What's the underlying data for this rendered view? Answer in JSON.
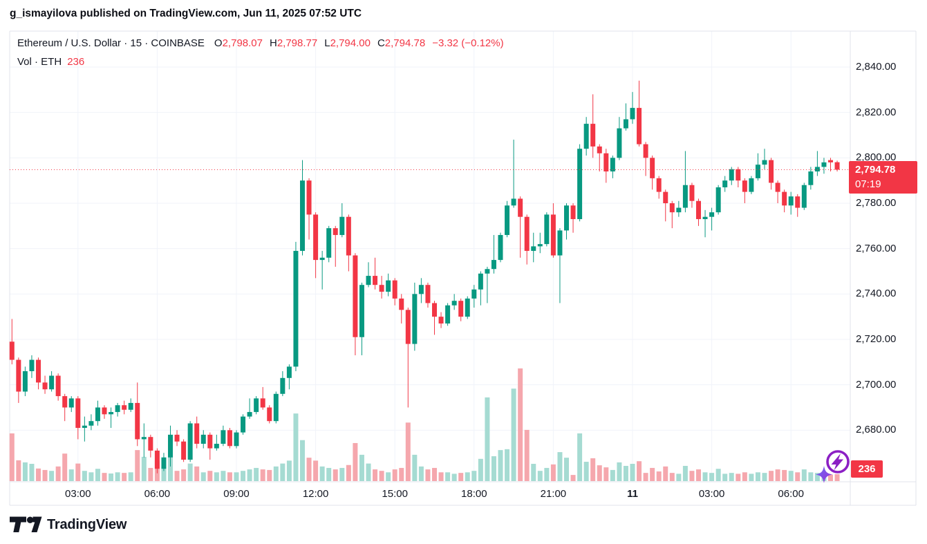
{
  "header": {
    "attribution": "g_ismayilova published on TradingView.com, Jun 11, 2025 07:52 UTC"
  },
  "legend": {
    "title": "Ethereum / U.S. Dollar · 15 · COINBASE",
    "ohlc": [
      {
        "label": "O",
        "value": "2,798.07"
      },
      {
        "label": "H",
        "value": "2,798.77"
      },
      {
        "label": "L",
        "value": "2,794.00"
      },
      {
        "label": "C",
        "value": "2,794.78"
      }
    ],
    "change": "−3.32 (−0.12%)",
    "volume_label": "Vol · ETH",
    "volume_value": "236"
  },
  "last_price_badge": {
    "price": "2,794.78",
    "countdown": "07:19"
  },
  "volume_badge": "236",
  "price_axis": {
    "ticks": [
      {
        "label": "2,840.00",
        "value": 2840
      },
      {
        "label": "2,820.00",
        "value": 2820
      },
      {
        "label": "2,800.00",
        "value": 2800
      },
      {
        "label": "2,780.00",
        "value": 2780
      },
      {
        "label": "2,760.00",
        "value": 2760
      },
      {
        "label": "2,740.00",
        "value": 2740
      },
      {
        "label": "2,720.00",
        "value": 2720
      },
      {
        "label": "2,700.00",
        "value": 2700
      },
      {
        "label": "2,680.00",
        "value": 2680
      }
    ]
  },
  "time_axis": {
    "ticks": [
      {
        "label": "03:00",
        "index": 10
      },
      {
        "label": "06:00",
        "index": 22
      },
      {
        "label": "09:00",
        "index": 34
      },
      {
        "label": "12:00",
        "index": 46
      },
      {
        "label": "15:00",
        "index": 58
      },
      {
        "label": "18:00",
        "index": 70
      },
      {
        "label": "21:00",
        "index": 82
      },
      {
        "label": "11",
        "index": 94,
        "bold": true
      },
      {
        "label": "03:00",
        "index": 106
      },
      {
        "label": "06:00",
        "index": 118
      }
    ]
  },
  "logo": {
    "text": "TradingView"
  },
  "colors": {
    "up": "#089981",
    "down": "#f23645",
    "vol_up": "#a5dbd2",
    "vol_down": "#f5a7ad",
    "grid": "#f0f3fa",
    "border": "#e0e3eb",
    "text": "#131722",
    "accent": "#f23645",
    "badge_text": "#ffffff",
    "spark_purple": "#8b1fc4",
    "spark_blue": "#6b6bf5"
  },
  "chart_data": {
    "type": "candlestick_with_volume",
    "title": "Ethereum / U.S. Dollar",
    "exchange": "COINBASE",
    "interval_minutes": 15,
    "start_time": "2025-06-10 00:30 UTC",
    "volume_unit": "ETH",
    "ylabel": "Price (USD)",
    "ylim": [
      2657,
      2856
    ],
    "grid": true,
    "last_candle": {
      "open": 2798.07,
      "high": 2798.77,
      "low": 2794.0,
      "close": 2794.78,
      "change": -3.32,
      "change_pct": -0.12,
      "volume": 236,
      "countdown": "07:19"
    },
    "candles_format": [
      "open",
      "high",
      "low",
      "close",
      "volume"
    ],
    "candles": [
      [
        2719,
        2729,
        2709,
        2711,
        1630
      ],
      [
        2711,
        2712,
        2692,
        2697,
        710
      ],
      [
        2697,
        2708,
        2695,
        2706,
        640
      ],
      [
        2706,
        2713,
        2703,
        2711,
        590
      ],
      [
        2711,
        2712,
        2698,
        2701,
        430
      ],
      [
        2701,
        2704,
        2696,
        2698,
        380
      ],
      [
        2698,
        2706,
        2697,
        2704,
        350
      ],
      [
        2704,
        2705,
        2693,
        2695,
        500
      ],
      [
        2695,
        2696,
        2684,
        2690,
        940
      ],
      [
        2690,
        2695,
        2688,
        2694,
        400
      ],
      [
        2694,
        2695,
        2676,
        2681,
        600
      ],
      [
        2681,
        2686,
        2675,
        2682,
        350
      ],
      [
        2682,
        2687,
        2680,
        2684,
        300
      ],
      [
        2684,
        2693,
        2682,
        2690,
        420
      ],
      [
        2690,
        2691,
        2685,
        2687,
        280
      ],
      [
        2687,
        2690,
        2681,
        2688,
        260
      ],
      [
        2688,
        2692,
        2686,
        2691,
        300
      ],
      [
        2691,
        2693,
        2687,
        2689,
        280
      ],
      [
        2689,
        2694,
        2688,
        2692,
        300
      ],
      [
        2692,
        2701,
        2673,
        2676,
        1060
      ],
      [
        2676,
        2683,
        2668,
        2677,
        830
      ],
      [
        2677,
        2678,
        2668,
        2671,
        450
      ],
      [
        2671,
        2672,
        2661,
        2663,
        700
      ],
      [
        2663,
        2670,
        2662,
        2668,
        500
      ],
      [
        2668,
        2682,
        2664,
        2678,
        830
      ],
      [
        2678,
        2680,
        2673,
        2675,
        350
      ],
      [
        2675,
        2676,
        2666,
        2667,
        400
      ],
      [
        2667,
        2684,
        2666,
        2683,
        600
      ],
      [
        2683,
        2686,
        2672,
        2674,
        500
      ],
      [
        2674,
        2680,
        2672,
        2678,
        300
      ],
      [
        2678,
        2679,
        2667,
        2672,
        350
      ],
      [
        2672,
        2678,
        2671,
        2674,
        300
      ],
      [
        2674,
        2682,
        2673,
        2680,
        350
      ],
      [
        2680,
        2681,
        2672,
        2673,
        300
      ],
      [
        2673,
        2680,
        2672,
        2679,
        300
      ],
      [
        2679,
        2687,
        2678,
        2686,
        350
      ],
      [
        2686,
        2694,
        2685,
        2688,
        400
      ],
      [
        2688,
        2695,
        2687,
        2694,
        450
      ],
      [
        2694,
        2699,
        2689,
        2690,
        400
      ],
      [
        2690,
        2691,
        2683,
        2684,
        380
      ],
      [
        2684,
        2697,
        2683,
        2696,
        500
      ],
      [
        2696,
        2706,
        2695,
        2703,
        600
      ],
      [
        2703,
        2709,
        2698,
        2708,
        700
      ],
      [
        2708,
        2763,
        2706,
        2759,
        2310
      ],
      [
        2759,
        2799,
        2757,
        2790,
        1400
      ],
      [
        2790,
        2791,
        2764,
        2775,
        800
      ],
      [
        2775,
        2776,
        2747,
        2755,
        700
      ],
      [
        2755,
        2759,
        2742,
        2756,
        500
      ],
      [
        2756,
        2770,
        2754,
        2769,
        450
      ],
      [
        2769,
        2770,
        2752,
        2766,
        400
      ],
      [
        2766,
        2780,
        2765,
        2774,
        450
      ],
      [
        2774,
        2775,
        2750,
        2757,
        550
      ],
      [
        2757,
        2758,
        2713,
        2721,
        1300
      ],
      [
        2721,
        2745,
        2713,
        2744,
        900
      ],
      [
        2744,
        2754,
        2743,
        2748,
        600
      ],
      [
        2748,
        2756,
        2742,
        2744,
        400
      ],
      [
        2744,
        2748,
        2738,
        2741,
        350
      ],
      [
        2741,
        2749,
        2739,
        2746,
        300
      ],
      [
        2746,
        2747,
        2735,
        2738,
        400
      ],
      [
        2738,
        2740,
        2727,
        2733,
        450
      ],
      [
        2733,
        2734,
        2690,
        2718,
        2000
      ],
      [
        2718,
        2745,
        2715,
        2740,
        900
      ],
      [
        2740,
        2747,
        2736,
        2744,
        500
      ],
      [
        2744,
        2745,
        2734,
        2736,
        400
      ],
      [
        2736,
        2737,
        2722,
        2730,
        450
      ],
      [
        2730,
        2732,
        2725,
        2727,
        300
      ],
      [
        2727,
        2736,
        2726,
        2735,
        300
      ],
      [
        2735,
        2740,
        2733,
        2737,
        250
      ],
      [
        2737,
        2738,
        2728,
        2730,
        280
      ],
      [
        2730,
        2739,
        2729,
        2738,
        300
      ],
      [
        2738,
        2744,
        2734,
        2742,
        350
      ],
      [
        2742,
        2750,
        2735,
        2749,
        760
      ],
      [
        2749,
        2752,
        2736,
        2751,
        2860
      ],
      [
        2751,
        2766,
        2749,
        2755,
        850
      ],
      [
        2755,
        2767,
        2754,
        2766,
        1060
      ],
      [
        2766,
        2781,
        2765,
        2779,
        1090
      ],
      [
        2779,
        2808,
        2778,
        2782,
        3160
      ],
      [
        2782,
        2783,
        2756,
        2774,
        3850
      ],
      [
        2774,
        2775,
        2753,
        2759,
        1750
      ],
      [
        2759,
        2767,
        2754,
        2761,
        590
      ],
      [
        2761,
        2767,
        2758,
        2762,
        350
      ],
      [
        2762,
        2776,
        2761,
        2775,
        450
      ],
      [
        2775,
        2780,
        2756,
        2757,
        570
      ],
      [
        2757,
        2769,
        2736,
        2768,
        990
      ],
      [
        2768,
        2780,
        2764,
        2779,
        800
      ],
      [
        2779,
        2780,
        2767,
        2773,
        210
      ],
      [
        2773,
        2806,
        2772,
        2804,
        1630
      ],
      [
        2804,
        2818,
        2801,
        2815,
        660
      ],
      [
        2815,
        2828,
        2800,
        2805,
        780
      ],
      [
        2805,
        2806,
        2794,
        2802,
        540
      ],
      [
        2802,
        2804,
        2789,
        2794,
        470
      ],
      [
        2794,
        2801,
        2791,
        2800,
        380
      ],
      [
        2800,
        2818,
        2799,
        2813,
        640
      ],
      [
        2813,
        2824,
        2812,
        2817,
        520
      ],
      [
        2817,
        2829,
        2815,
        2822,
        590
      ],
      [
        2822,
        2834,
        2805,
        2806,
        680
      ],
      [
        2806,
        2807,
        2792,
        2800,
        280
      ],
      [
        2800,
        2801,
        2786,
        2791,
        450
      ],
      [
        2791,
        2792,
        2782,
        2785,
        330
      ],
      [
        2785,
        2786,
        2772,
        2780,
        500
      ],
      [
        2780,
        2781,
        2769,
        2776,
        280
      ],
      [
        2776,
        2781,
        2774,
        2778,
        250
      ],
      [
        2778,
        2803,
        2776,
        2788,
        520
      ],
      [
        2788,
        2789,
        2778,
        2781,
        350
      ],
      [
        2781,
        2782,
        2770,
        2773,
        400
      ],
      [
        2773,
        2777,
        2765,
        2774,
        300
      ],
      [
        2774,
        2778,
        2768,
        2776,
        280
      ],
      [
        2776,
        2788,
        2775,
        2787,
        420
      ],
      [
        2787,
        2792,
        2785,
        2790,
        250
      ],
      [
        2790,
        2796,
        2788,
        2795,
        280
      ],
      [
        2795,
        2796,
        2787,
        2790,
        250
      ],
      [
        2790,
        2791,
        2780,
        2785,
        300
      ],
      [
        2785,
        2792,
        2784,
        2791,
        250
      ],
      [
        2791,
        2802,
        2790,
        2797,
        300
      ],
      [
        2797,
        2804,
        2795,
        2799,
        280
      ],
      [
        2799,
        2800,
        2786,
        2789,
        350
      ],
      [
        2789,
        2790,
        2780,
        2785,
        400
      ],
      [
        2785,
        2786,
        2776,
        2779,
        380
      ],
      [
        2779,
        2785,
        2775,
        2783,
        350
      ],
      [
        2783,
        2784,
        2774,
        2778,
        300
      ],
      [
        2778,
        2789,
        2777,
        2788,
        400
      ],
      [
        2788,
        2796,
        2786,
        2794,
        300
      ],
      [
        2794,
        2803,
        2792,
        2796,
        280
      ],
      [
        2796,
        2800,
        2793,
        2798,
        250
      ],
      [
        2799,
        2800,
        2794,
        2798,
        220
      ],
      [
        2798.07,
        2798.77,
        2794.0,
        2794.78,
        236
      ]
    ]
  }
}
